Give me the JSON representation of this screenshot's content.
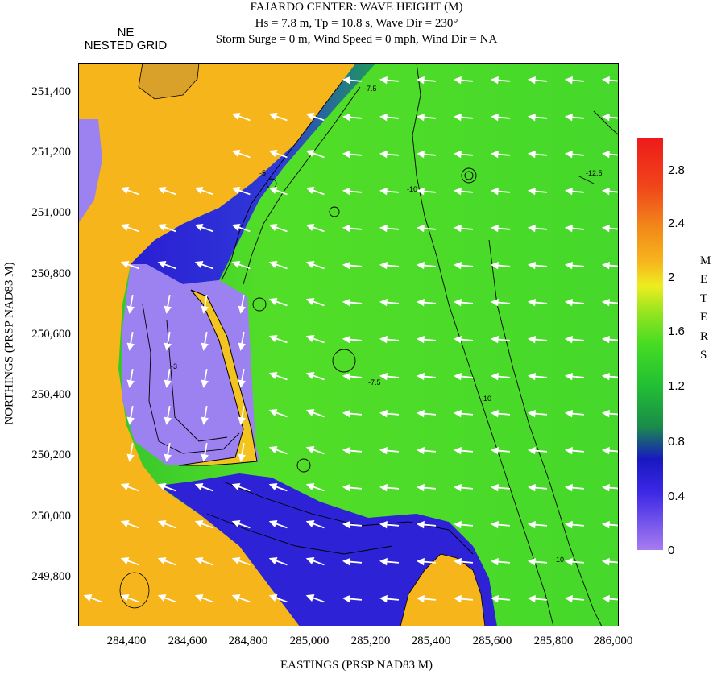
{
  "title": {
    "line1": "FAJARDO CENTER: WAVE HEIGHT (M)",
    "line2": "Hs = 7.8 m, Tp = 10.8 s, Wave Dir = 230°",
    "line3": "Storm Surge = 0 m, Wind Speed = 0 mph, Wind Dir = NA"
  },
  "grid_label": {
    "line1": "NE",
    "line2": "NESTED GRID"
  },
  "axes": {
    "xlabel": "EASTINGS (PRSP NAD83 M)",
    "ylabel": "NORTHINGS (PRSP NAD83 M)",
    "xticks": [
      "284,400",
      "284,600",
      "284,800",
      "285,000",
      "285,200",
      "285,400",
      "285,600",
      "285,800",
      "286,000"
    ],
    "yticks": [
      "251,400",
      "251,200",
      "251,000",
      "250,800",
      "250,600",
      "250,400",
      "250,200",
      "250,000",
      "249,800"
    ]
  },
  "colorbar": {
    "title": "METERS",
    "ticks": [
      "2.8",
      "2.4",
      "2",
      "1.6",
      "1.2",
      "0.8",
      "0.4",
      "0"
    ],
    "min": 0,
    "max": 3.0,
    "colors": [
      "#a77cf0",
      "#1818c0",
      "#1a8c4a",
      "#46dc23",
      "#eded20",
      "#f28a1a",
      "#ee1a1a"
    ]
  },
  "map_colors": {
    "land": "#f7b51c",
    "hill": "#d9a02a",
    "shallow": "#9b82f0",
    "deep_blue": "#2d22d6",
    "offshore": "#4cd82a",
    "breakwater": "#f3c41f",
    "arrow": "#ffffff"
  },
  "contour_labels": [
    "-7.5",
    "-10",
    "-5",
    "-3",
    "-12.5"
  ]
}
